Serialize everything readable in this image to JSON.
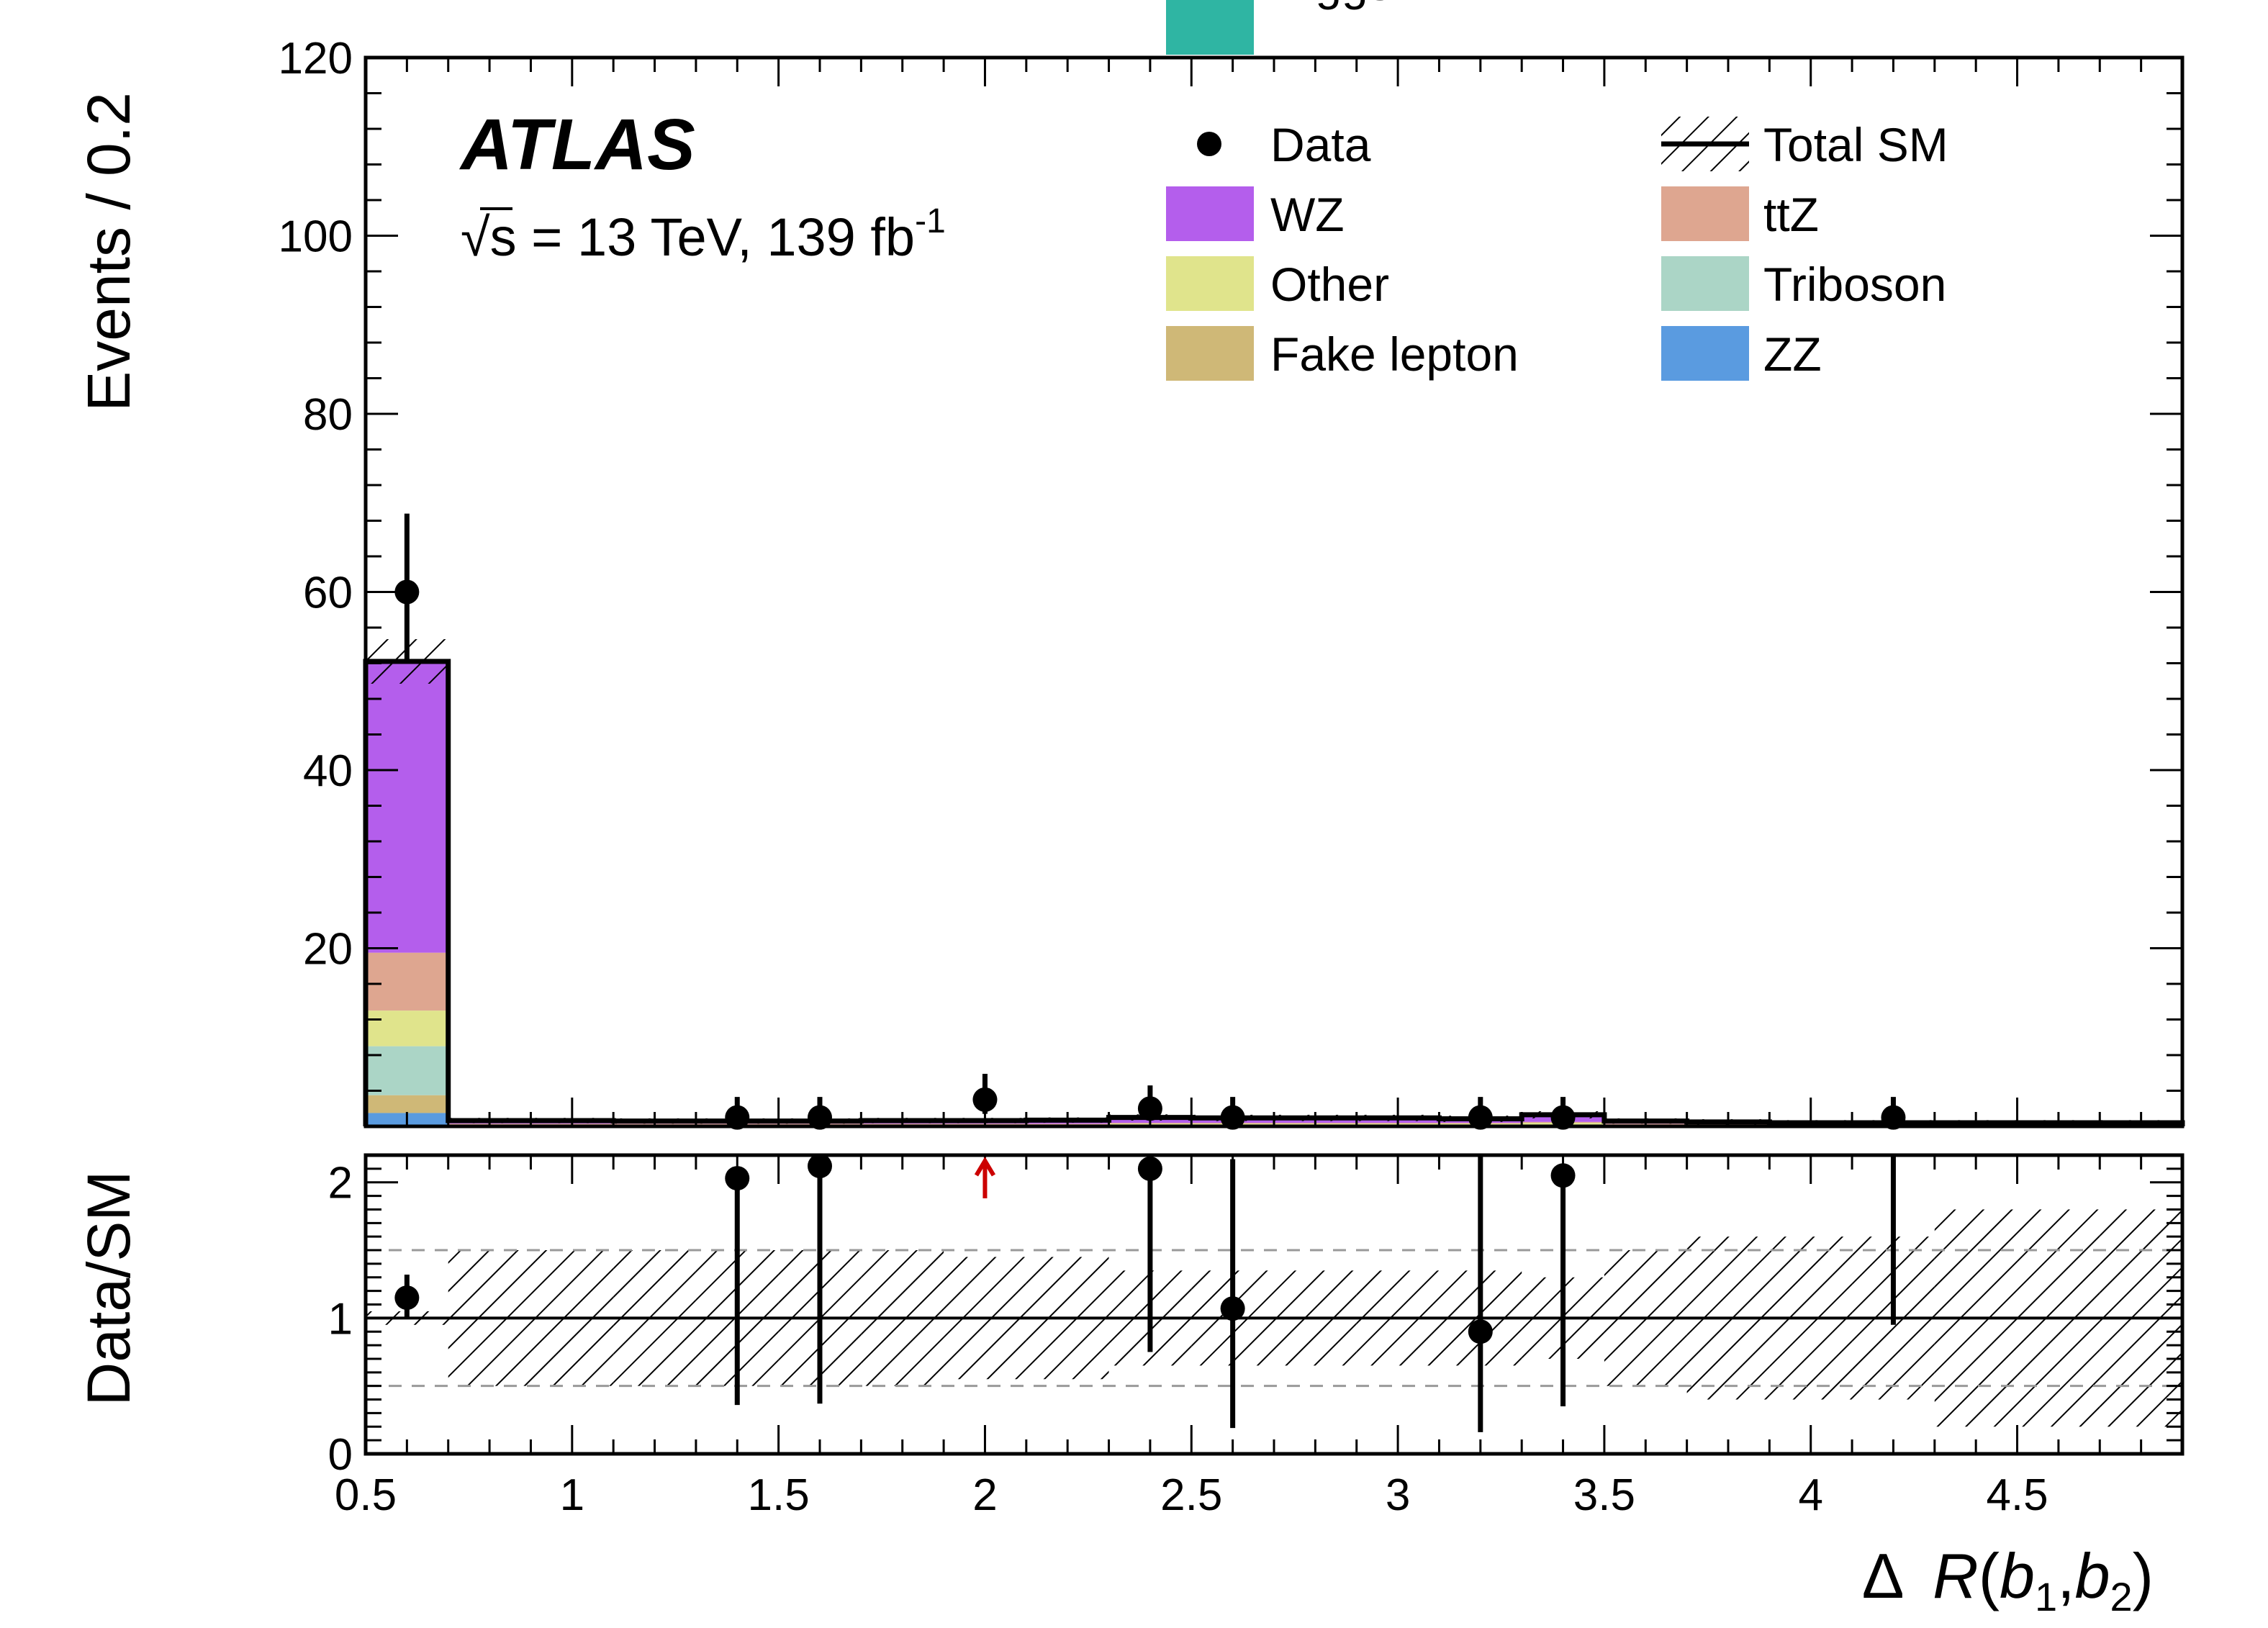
{
  "experiment": "ATLAS",
  "energy_label": {
    "sqrt": "√",
    "s_part": "s = 13 TeV, 139 fb",
    "sup": "-1"
  },
  "colors": {
    "WZ": "#b45eec",
    "Other": "#e0e48c",
    "Fake lepton": "#cfb877",
    "Higgs": "#2fb5a3",
    "ttZ": "#dea690",
    "Triboson": "#abd5c6",
    "ZZ": "#5a9be0",
    "data": "#000000",
    "arrow": "#cc0000",
    "ref_dashed": "#999999"
  },
  "legend": {
    "data": "Data",
    "total": "Total SM",
    "left": [
      "WZ",
      "Other",
      "Fake lepton",
      "Higgs"
    ],
    "right": [
      "ttZ",
      "Triboson",
      "ZZ"
    ]
  },
  "chart_data": [
    {
      "type": "bar",
      "stacked": true,
      "ylabel": "Events / 0.2",
      "ylim": [
        0,
        120
      ],
      "xlim": [
        0.5,
        4.9
      ],
      "yticks": [
        "20",
        "40",
        "60",
        "80",
        "100",
        "120"
      ],
      "bin_edges": [
        0.5,
        0.7,
        0.9,
        1.1,
        1.3,
        1.5,
        1.7,
        1.9,
        2.1,
        2.3,
        2.5,
        2.7,
        2.9,
        3.1,
        3.3,
        3.5,
        3.7,
        3.9,
        4.1,
        4.3,
        4.5,
        4.7,
        4.9
      ],
      "stack_order": [
        "ZZ",
        "Fake lepton",
        "Triboson",
        "Other",
        "ttZ",
        "WZ"
      ],
      "series": [
        {
          "name": "ZZ",
          "values": [
            1.5,
            0,
            0,
            0,
            0,
            0,
            0,
            0,
            0,
            0,
            0,
            0,
            0,
            0,
            0,
            0,
            0,
            0,
            0,
            0,
            0,
            0
          ]
        },
        {
          "name": "Fake lepton",
          "values": [
            2.0,
            0.05,
            0.05,
            0.05,
            0.05,
            0.05,
            0.05,
            0.05,
            0.05,
            0.05,
            0.05,
            0.05,
            0.05,
            0.05,
            0.05,
            0.05,
            0.05,
            0.05,
            0.05,
            0.05,
            0.05,
            0.05
          ]
        },
        {
          "name": "Triboson",
          "values": [
            5.5,
            0.05,
            0.05,
            0.05,
            0.05,
            0.05,
            0.05,
            0.05,
            0.05,
            0.05,
            0.05,
            0.05,
            0.05,
            0.05,
            0.05,
            0.05,
            0.05,
            0.05,
            0.05,
            0.05,
            0.05,
            0.05
          ]
        },
        {
          "name": "Other",
          "values": [
            4.0,
            0.1,
            0.1,
            0.1,
            0.1,
            0.1,
            0.1,
            0.1,
            0.1,
            0.2,
            0.2,
            0.2,
            0.2,
            0.2,
            0.3,
            0.1,
            0.1,
            0.1,
            0.1,
            0.1,
            0.1,
            0.1
          ]
        },
        {
          "name": "ttZ",
          "values": [
            6.5,
            0.1,
            0.1,
            0.1,
            0.1,
            0.1,
            0.1,
            0.1,
            0.1,
            0.1,
            0.1,
            0.1,
            0.1,
            0.1,
            0.1,
            0.1,
            0.05,
            0.05,
            0.05,
            0.05,
            0.05,
            0.05
          ]
        },
        {
          "name": "WZ",
          "values": [
            32.7,
            0.35,
            0.35,
            0.3,
            0.3,
            0.3,
            0.35,
            0.35,
            0.4,
            0.6,
            0.55,
            0.55,
            0.55,
            0.45,
            0.8,
            0.3,
            0.3,
            0.2,
            0.2,
            0.2,
            0.2,
            0.2
          ]
        }
      ],
      "total_sm": [
        52.2,
        0.65,
        0.65,
        0.6,
        0.6,
        0.6,
        0.65,
        0.65,
        0.7,
        1.0,
        0.95,
        0.95,
        0.95,
        0.85,
        1.3,
        0.6,
        0.5,
        0.4,
        0.4,
        0.4,
        0.4,
        0.4
      ],
      "total_sm_unc": [
        2.5,
        0.3,
        0.3,
        0.3,
        0.3,
        0.3,
        0.3,
        0.3,
        0.3,
        0.35,
        0.35,
        0.35,
        0.35,
        0.35,
        0.4,
        0.3,
        0.3,
        0.3,
        0.3,
        0.3,
        0.3,
        0.3
      ],
      "data_points": [
        {
          "x": 0.6,
          "y": 60,
          "err_up": 8.8,
          "err_down": 7.7
        },
        {
          "x": 1.4,
          "y": 1,
          "err_up": 2.3,
          "err_down": 0.8
        },
        {
          "x": 1.6,
          "y": 1,
          "err_up": 2.3,
          "err_down": 0.8
        },
        {
          "x": 2.0,
          "y": 3,
          "err_up": 2.9,
          "err_down": 1.6
        },
        {
          "x": 2.4,
          "y": 2,
          "err_up": 2.6,
          "err_down": 1.3
        },
        {
          "x": 2.6,
          "y": 1,
          "err_up": 2.3,
          "err_down": 0.8
        },
        {
          "x": 3.2,
          "y": 1,
          "err_up": 2.3,
          "err_down": 0.8
        },
        {
          "x": 3.4,
          "y": 1,
          "err_up": 2.3,
          "err_down": 0.8
        },
        {
          "x": 4.2,
          "y": 1,
          "err_up": 2.3,
          "err_down": 0.8
        }
      ]
    },
    {
      "type": "scatter",
      "ylabel": "Data/SM",
      "xlabel": "Δ R(b1,b2)",
      "ylim": [
        0,
        2.2
      ],
      "xlim": [
        0.5,
        4.9
      ],
      "yticks": [
        "0",
        "1",
        "2"
      ],
      "xticks": [
        "0.5",
        "1",
        "1.5",
        "2",
        "2.5",
        "3",
        "3.5",
        "4",
        "4.5"
      ],
      "reference_lines": [
        0.5,
        1.0,
        1.5
      ],
      "ratio_points": [
        {
          "x": 0.6,
          "y": 1.15,
          "err_up": 0.17,
          "err_down": 0.15
        },
        {
          "x": 1.4,
          "y": 2.03,
          "err_up": 0,
          "err_down": 1.67
        },
        {
          "x": 1.6,
          "y": 2.12,
          "err_up": 0,
          "err_down": 1.75
        },
        {
          "x": 2.4,
          "y": 2.1,
          "err_up": 0,
          "err_down": 1.35
        },
        {
          "x": 2.6,
          "y": 1.07,
          "err_up": 1.1,
          "err_down": 0.88
        },
        {
          "x": 3.2,
          "y": 0.9,
          "err_up": 1.3,
          "err_down": 0.74
        },
        {
          "x": 3.4,
          "y": 2.05,
          "err_up": 0,
          "err_down": 1.7
        },
        {
          "x": 4.2,
          "y": 2.6,
          "err_up": 0,
          "err_down": 1.65
        }
      ],
      "off_scale_arrows": [
        {
          "x": 2.0
        }
      ],
      "ratio_unc": [
        0.05,
        0.5,
        0.5,
        0.5,
        0.5,
        0.5,
        0.5,
        0.45,
        0.45,
        0.35,
        0.35,
        0.35,
        0.35,
        0.35,
        0.3,
        0.5,
        0.6,
        0.6,
        0.6,
        0.8,
        0.8,
        0.8
      ]
    }
  ]
}
